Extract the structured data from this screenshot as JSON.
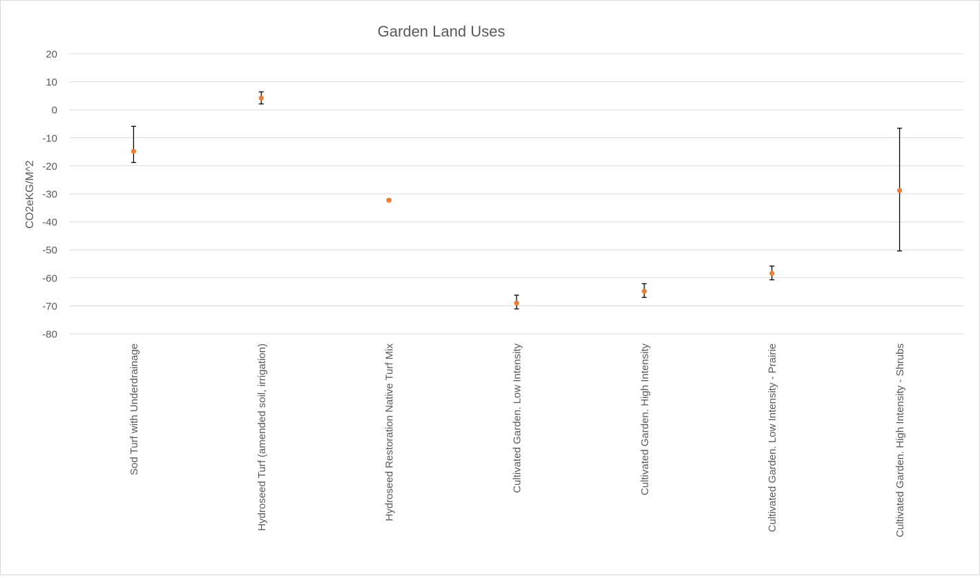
{
  "chart_data": {
    "type": "scatter",
    "title": "Garden Land Uses",
    "ylabel": "CO2eKG/M^2",
    "xlabel": "",
    "ylim": [
      -80,
      20
    ],
    "ytick_step": 10,
    "grid": true,
    "legend": "none",
    "categories": [
      "Sod Turf with Underdrainage",
      "Hydroseed Turf (amended soil, irrigation)",
      "Hydroseed Restoration Native Turf Mix",
      "Cultivated Garden. Low Intensity",
      "Cultivated Garden. High Intensity",
      "Cultivated Garden. Low Intensity - Prairie",
      "Cultivated Garden. High Intensity - Shrubs"
    ],
    "series": [
      {
        "values": [
          -14.8,
          4.2,
          -32.3,
          -69.0,
          -64.8,
          -58.4,
          -28.8
        ],
        "error_high": [
          -5.9,
          6.4,
          -31.9,
          -66.2,
          -62.1,
          -55.8,
          -6.6
        ],
        "error_low": [
          -18.8,
          2.1,
          -32.6,
          -71.1,
          -67.0,
          -60.7,
          -50.4
        ],
        "color": "#ED7D31"
      }
    ],
    "colors": {
      "marker": "#ED7D31",
      "grid": "#d9d9d9",
      "axis_text": "#595959",
      "error_bar": "#000000"
    }
  }
}
